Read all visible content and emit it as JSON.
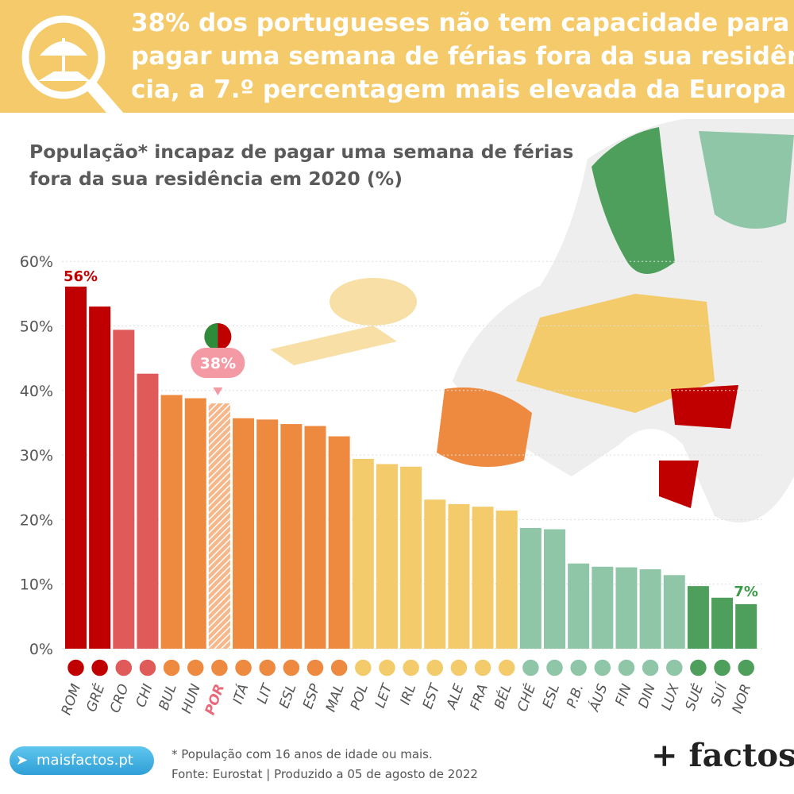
{
  "header": {
    "title_lines": [
      "38% dos portugueses não tem capacidade para",
      "pagar uma semana de férias fora da sua residên-",
      "cia, a 7.º percentagem mais elevada da Europa"
    ]
  },
  "subtitle": {
    "bold_line1": "População* incapaz de pagar uma semana de férias",
    "bold_line2": "fora da sua residência",
    "rest_line2": " em 2020 (%)"
  },
  "footer": {
    "note": "* População com 16 anos de idade ou mais.",
    "source": "Fonte: Eurostat | Produzido a 05 de agosto de 2022",
    "site": "maisfactos.pt",
    "brand": "+ factos"
  },
  "colors": {
    "header_bg": "#f5ca6a",
    "very_high": "#c00000",
    "high": "#e05a5a",
    "mid_high": "#ee8a40",
    "mid": "#f3cb6a",
    "low": "#90c6a8",
    "very_low": "#4e9f5c",
    "highlight_label": "#e86a7a",
    "min_label": "#3a9a45"
  },
  "chart_data": {
    "type": "bar",
    "title": "População* incapaz de pagar uma semana de férias fora da sua residência em 2020 (%)",
    "categories": [
      "ROM",
      "GRÉ",
      "CRO",
      "CHI",
      "BUL",
      "HUN",
      "POR",
      "ITÁ",
      "LIT",
      "ESL",
      "ESP",
      "MAL",
      "POL",
      "LET",
      "IRL",
      "EST",
      "ALE",
      "FRA",
      "BÉL",
      "CHÉ",
      "ESL",
      "P.B.",
      "ÁUS",
      "FIN",
      "DIN",
      "LUX",
      "SUÉ",
      "SUÍ",
      "NOR"
    ],
    "values": [
      56.1,
      53.0,
      49.4,
      42.6,
      39.3,
      38.8,
      38.0,
      35.7,
      35.5,
      34.8,
      34.5,
      32.9,
      29.4,
      28.6,
      28.2,
      23.1,
      22.4,
      22.0,
      21.4,
      18.7,
      18.5,
      13.2,
      12.7,
      12.6,
      12.3,
      11.4,
      9.7,
      7.9,
      6.9
    ],
    "color_groups": [
      "very_high",
      "very_high",
      "high",
      "high",
      "mid_high",
      "mid_high",
      "mid_high",
      "mid_high",
      "mid_high",
      "mid_high",
      "mid_high",
      "mid_high",
      "mid",
      "mid",
      "mid",
      "mid",
      "mid",
      "mid",
      "mid",
      "low",
      "low",
      "low",
      "low",
      "low",
      "low",
      "low",
      "very_low",
      "very_low",
      "very_low"
    ],
    "highlight": "POR",
    "yticks": [
      "0%",
      "10%",
      "20%",
      "30%",
      "40%",
      "50%",
      "60%"
    ],
    "ylim": [
      0,
      60
    ],
    "annotations": {
      "max": "56%",
      "portugal": "38%",
      "min": "7%"
    },
    "grid": true
  }
}
